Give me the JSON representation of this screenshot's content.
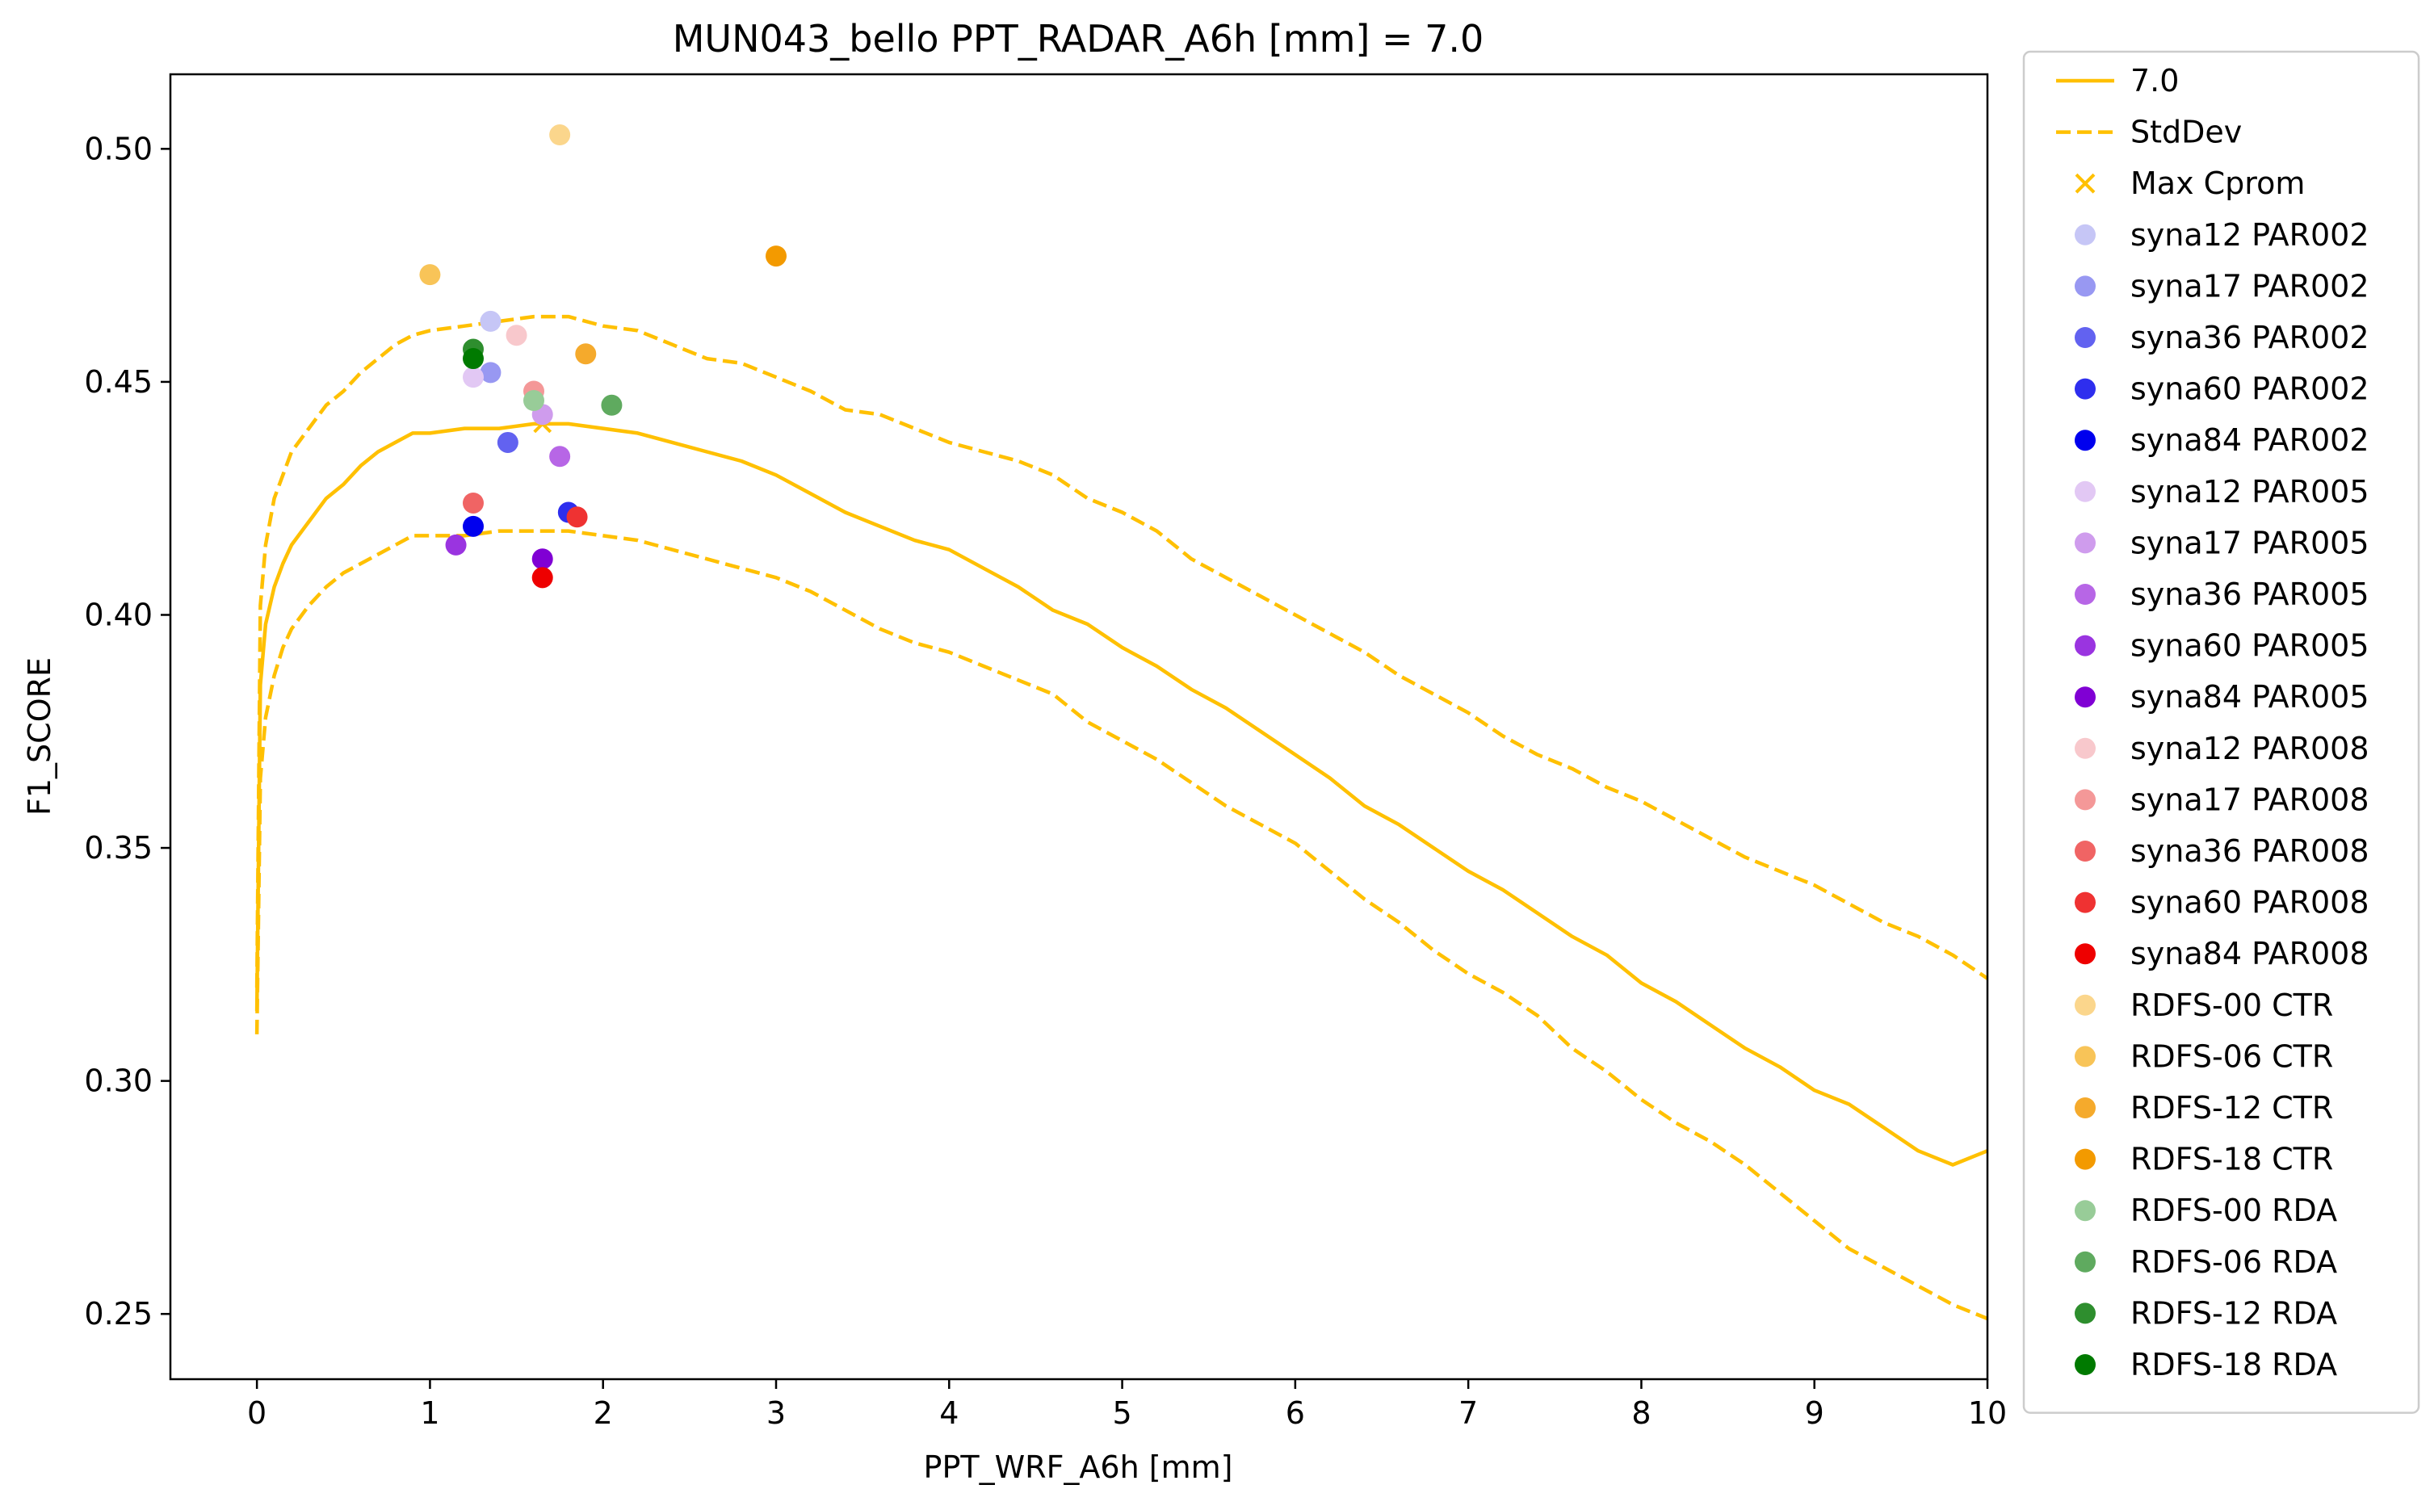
{
  "chart_data": {
    "type": "scatter",
    "title": "MUN043_bello    PPT_RADAR_A6h [mm] = 7.0",
    "xlabel": "PPT_WRF_A6h [mm]",
    "ylabel": "F1_SCORE",
    "xlim": [
      -0.5,
      10
    ],
    "ylim": [
      0.236,
      0.516
    ],
    "xticks": [
      0,
      1,
      2,
      3,
      4,
      5,
      6,
      7,
      8,
      9,
      10
    ],
    "yticks": [
      0.25,
      0.3,
      0.35,
      0.4,
      0.45,
      0.5
    ],
    "xtick_labels": [
      "0",
      "1",
      "2",
      "3",
      "4",
      "5",
      "6",
      "7",
      "8",
      "9",
      "10"
    ],
    "ytick_labels": [
      "0.25",
      "0.30",
      "0.35",
      "0.40",
      "0.45",
      "0.50"
    ],
    "grid": false,
    "legend_position": "outside-right",
    "lines": [
      {
        "name": "7.0",
        "color": "#ffc000",
        "style": "solid",
        "x": [
          0.0,
          0.02,
          0.05,
          0.1,
          0.15,
          0.2,
          0.3,
          0.4,
          0.5,
          0.6,
          0.7,
          0.8,
          0.9,
          1.0,
          1.2,
          1.4,
          1.6,
          1.8,
          2.0,
          2.2,
          2.4,
          2.6,
          2.8,
          3.0,
          3.2,
          3.4,
          3.6,
          3.8,
          4.0,
          4.2,
          4.4,
          4.6,
          4.8,
          5.0,
          5.2,
          5.4,
          5.6,
          5.8,
          6.0,
          6.2,
          6.4,
          6.6,
          6.8,
          7.0,
          7.2,
          7.4,
          7.6,
          7.8,
          8.0,
          8.2,
          8.4,
          8.6,
          8.8,
          9.0,
          9.2,
          9.4,
          9.6,
          9.8,
          10.0
        ],
        "y": [
          0.315,
          0.385,
          0.398,
          0.406,
          0.411,
          0.415,
          0.42,
          0.425,
          0.428,
          0.432,
          0.435,
          0.437,
          0.439,
          0.439,
          0.44,
          0.44,
          0.441,
          0.441,
          0.44,
          0.439,
          0.437,
          0.435,
          0.433,
          0.43,
          0.426,
          0.422,
          0.419,
          0.416,
          0.414,
          0.41,
          0.406,
          0.401,
          0.398,
          0.393,
          0.389,
          0.384,
          0.38,
          0.375,
          0.37,
          0.365,
          0.359,
          0.355,
          0.35,
          0.345,
          0.341,
          0.336,
          0.331,
          0.327,
          0.321,
          0.317,
          0.312,
          0.307,
          0.303,
          0.298,
          0.295,
          0.29,
          0.285,
          0.282,
          0.285
        ]
      },
      {
        "name": "StdDev",
        "color": "#ffc000",
        "style": "dashed",
        "x": [
          0.0,
          0.02,
          0.05,
          0.1,
          0.15,
          0.2,
          0.3,
          0.4,
          0.5,
          0.6,
          0.7,
          0.8,
          0.9,
          1.0,
          1.2,
          1.4,
          1.6,
          1.8,
          2.0,
          2.2,
          2.4,
          2.6,
          2.8,
          3.0,
          3.2,
          3.4,
          3.6,
          3.8,
          4.0,
          4.2,
          4.4,
          4.6,
          4.8,
          5.0,
          5.2,
          5.4,
          5.6,
          5.8,
          6.0,
          6.2,
          6.4,
          6.6,
          6.8,
          7.0,
          7.2,
          7.4,
          7.6,
          7.8,
          8.0,
          8.2,
          8.4,
          8.6,
          8.8,
          9.0,
          9.2,
          9.4,
          9.6,
          9.8,
          10.0
        ],
        "y": [
          0.32,
          0.402,
          0.415,
          0.425,
          0.43,
          0.435,
          0.44,
          0.445,
          0.448,
          0.452,
          0.455,
          0.458,
          0.46,
          0.461,
          0.462,
          0.463,
          0.464,
          0.464,
          0.462,
          0.461,
          0.458,
          0.455,
          0.454,
          0.451,
          0.448,
          0.444,
          0.443,
          0.44,
          0.437,
          0.435,
          0.433,
          0.43,
          0.425,
          0.422,
          0.418,
          0.412,
          0.408,
          0.404,
          0.4,
          0.396,
          0.392,
          0.387,
          0.383,
          0.379,
          0.374,
          0.37,
          0.367,
          0.363,
          0.36,
          0.356,
          0.352,
          0.348,
          0.345,
          0.342,
          0.338,
          0.334,
          0.331,
          0.327,
          0.322
        ]
      },
      {
        "name": "",
        "color": "#ffc000",
        "style": "dashed",
        "x": [
          0.0,
          0.02,
          0.05,
          0.1,
          0.15,
          0.2,
          0.3,
          0.4,
          0.5,
          0.6,
          0.7,
          0.8,
          0.9,
          1.0,
          1.2,
          1.4,
          1.6,
          1.8,
          2.0,
          2.2,
          2.4,
          2.6,
          2.8,
          3.0,
          3.2,
          3.4,
          3.6,
          3.8,
          4.0,
          4.2,
          4.4,
          4.6,
          4.8,
          5.0,
          5.2,
          5.4,
          5.6,
          5.8,
          6.0,
          6.2,
          6.4,
          6.6,
          6.8,
          7.0,
          7.2,
          7.4,
          7.6,
          7.8,
          8.0,
          8.2,
          8.4,
          8.6,
          8.8,
          9.0,
          9.2,
          9.4,
          9.6,
          9.8,
          10.0
        ],
        "y": [
          0.31,
          0.365,
          0.378,
          0.387,
          0.393,
          0.397,
          0.402,
          0.406,
          0.409,
          0.411,
          0.413,
          0.415,
          0.417,
          0.417,
          0.417,
          0.418,
          0.418,
          0.418,
          0.417,
          0.416,
          0.414,
          0.412,
          0.41,
          0.408,
          0.405,
          0.401,
          0.397,
          0.394,
          0.392,
          0.389,
          0.386,
          0.383,
          0.377,
          0.373,
          0.369,
          0.364,
          0.359,
          0.355,
          0.351,
          0.345,
          0.339,
          0.334,
          0.328,
          0.323,
          0.319,
          0.314,
          0.307,
          0.302,
          0.296,
          0.291,
          0.287,
          0.282,
          0.276,
          0.27,
          0.264,
          0.26,
          0.256,
          0.252,
          0.249
        ]
      }
    ],
    "max_marker": {
      "name": "Max Cprom",
      "symbol": "x",
      "color": "#ffc000",
      "x": 1.65,
      "y": 0.441
    },
    "points": [
      {
        "name": "syna12 PAR002",
        "color": "#c6c6f6",
        "x": 1.35,
        "y": 0.463
      },
      {
        "name": "syna17 PAR002",
        "color": "#9898f2",
        "x": 1.35,
        "y": 0.452
      },
      {
        "name": "syna36 PAR002",
        "color": "#6262f0",
        "x": 1.45,
        "y": 0.437
      },
      {
        "name": "syna60 PAR002",
        "color": "#2e2eee",
        "x": 1.8,
        "y": 0.422
      },
      {
        "name": "syna84 PAR002",
        "color": "#0000ee",
        "x": 1.25,
        "y": 0.419
      },
      {
        "name": "syna12 PAR005",
        "color": "#e2c8f4",
        "x": 1.25,
        "y": 0.451
      },
      {
        "name": "syna17 PAR005",
        "color": "#cf9ced",
        "x": 1.65,
        "y": 0.443
      },
      {
        "name": "syna36 PAR005",
        "color": "#b766e6",
        "x": 1.75,
        "y": 0.434
      },
      {
        "name": "syna60 PAR005",
        "color": "#9a34e0",
        "x": 1.15,
        "y": 0.415
      },
      {
        "name": "syna84 PAR005",
        "color": "#8000d4",
        "x": 1.65,
        "y": 0.412
      },
      {
        "name": "syna12 PAR008",
        "color": "#f8c8cc",
        "x": 1.5,
        "y": 0.46
      },
      {
        "name": "syna17 PAR008",
        "color": "#f49898",
        "x": 1.6,
        "y": 0.448
      },
      {
        "name": "syna36 PAR008",
        "color": "#f06464",
        "x": 1.25,
        "y": 0.424
      },
      {
        "name": "syna60 PAR008",
        "color": "#ef3232",
        "x": 1.85,
        "y": 0.421
      },
      {
        "name": "syna84 PAR008",
        "color": "#ee0000",
        "x": 1.65,
        "y": 0.408
      },
      {
        "name": "RDFS-00 CTR",
        "color": "#fbd68c",
        "x": 1.75,
        "y": 0.503
      },
      {
        "name": "RDFS-06 CTR",
        "color": "#f8c458",
        "x": 1.0,
        "y": 0.473
      },
      {
        "name": "RDFS-12 CTR",
        "color": "#f5aa2c",
        "x": 1.9,
        "y": 0.456
      },
      {
        "name": "RDFS-18 CTR",
        "color": "#f39a00",
        "x": 3.0,
        "y": 0.477
      },
      {
        "name": "RDFS-00 RDA",
        "color": "#98cc98",
        "x": 1.6,
        "y": 0.446
      },
      {
        "name": "RDFS-06 RDA",
        "color": "#5faa5f",
        "x": 2.05,
        "y": 0.445
      },
      {
        "name": "RDFS-12 RDA",
        "color": "#2e8e2e",
        "x": 1.25,
        "y": 0.457
      },
      {
        "name": "RDFS-18 RDA",
        "color": "#007a00",
        "x": 1.25,
        "y": 0.455
      }
    ],
    "legend": [
      {
        "label": "7.0",
        "kind": "line",
        "color": "#ffc000"
      },
      {
        "label": "StdDev",
        "kind": "dash",
        "color": "#ffc000"
      },
      {
        "label": "Max Cprom",
        "kind": "x",
        "color": "#ffc000"
      },
      {
        "label": "syna12 PAR002",
        "kind": "dot",
        "color": "#c6c6f6"
      },
      {
        "label": "syna17 PAR002",
        "kind": "dot",
        "color": "#9898f2"
      },
      {
        "label": "syna36 PAR002",
        "kind": "dot",
        "color": "#6262f0"
      },
      {
        "label": "syna60 PAR002",
        "kind": "dot",
        "color": "#2e2eee"
      },
      {
        "label": "syna84 PAR002",
        "kind": "dot",
        "color": "#0000ee"
      },
      {
        "label": "syna12 PAR005",
        "kind": "dot",
        "color": "#e2c8f4"
      },
      {
        "label": "syna17 PAR005",
        "kind": "dot",
        "color": "#cf9ced"
      },
      {
        "label": "syna36 PAR005",
        "kind": "dot",
        "color": "#b766e6"
      },
      {
        "label": "syna60 PAR005",
        "kind": "dot",
        "color": "#9a34e0"
      },
      {
        "label": "syna84 PAR005",
        "kind": "dot",
        "color": "#8000d4"
      },
      {
        "label": "syna12 PAR008",
        "kind": "dot",
        "color": "#f8c8cc"
      },
      {
        "label": "syna17 PAR008",
        "kind": "dot",
        "color": "#f49898"
      },
      {
        "label": "syna36 PAR008",
        "kind": "dot",
        "color": "#f06464"
      },
      {
        "label": "syna60 PAR008",
        "kind": "dot",
        "color": "#ef3232"
      },
      {
        "label": "syna84 PAR008",
        "kind": "dot",
        "color": "#ee0000"
      },
      {
        "label": "RDFS-00 CTR",
        "kind": "dot",
        "color": "#fbd68c"
      },
      {
        "label": "RDFS-06 CTR",
        "kind": "dot",
        "color": "#f8c458"
      },
      {
        "label": "RDFS-12 CTR",
        "kind": "dot",
        "color": "#f5aa2c"
      },
      {
        "label": "RDFS-18 CTR",
        "kind": "dot",
        "color": "#f39a00"
      },
      {
        "label": "RDFS-00 RDA",
        "kind": "dot",
        "color": "#98cc98"
      },
      {
        "label": "RDFS-06 RDA",
        "kind": "dot",
        "color": "#5faa5f"
      },
      {
        "label": "RDFS-12 RDA",
        "kind": "dot",
        "color": "#2e8e2e"
      },
      {
        "label": "RDFS-18 RDA",
        "kind": "dot",
        "color": "#007a00"
      }
    ]
  }
}
